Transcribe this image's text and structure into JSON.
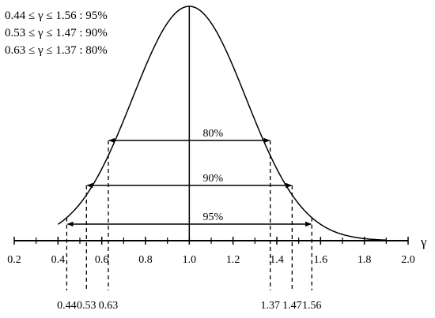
{
  "legend": [
    "0.44 ≤ γ ≤ 1.56 : 95%",
    "0.53 ≤ γ ≤ 1.47 : 90%",
    "0.63 ≤ γ ≤ 1.37 : 80%"
  ],
  "axis": {
    "symbol": "γ",
    "range": [
      0.2,
      2.0
    ],
    "ticks": [
      "0.2",
      "0.4",
      "0.6",
      "0.8",
      "1.0",
      "1.2",
      "1.4",
      "1.6",
      "1.8",
      "2.0"
    ]
  },
  "curve": {
    "shape": "bell",
    "peak_at": 1.0,
    "domain": [
      0.4,
      1.9
    ]
  },
  "intervals": [
    {
      "label": "80%",
      "low": 0.63,
      "high": 1.37,
      "low_label": "0.63",
      "high_label": "1.37"
    },
    {
      "label": "90%",
      "low": 0.53,
      "high": 1.47,
      "low_label": "0.53",
      "high_label": "1.47"
    },
    {
      "label": "95%",
      "low": 0.44,
      "high": 1.56,
      "low_label": "0.44",
      "high_label": "1.56"
    }
  ],
  "colors": {
    "ink": "#000000",
    "background": "#ffffff"
  }
}
